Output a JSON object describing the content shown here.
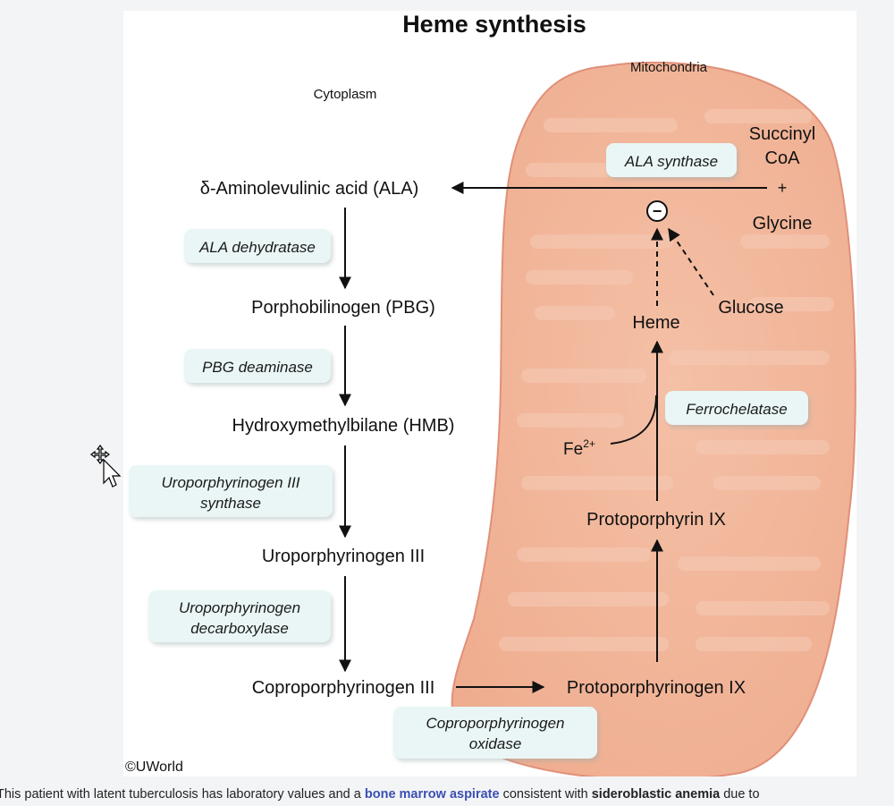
{
  "title": "Heme synthesis",
  "regions": {
    "cytoplasm": "Cytoplasm",
    "mitochondria": "Mitochondria"
  },
  "substrates": {
    "succinyl_line1": "Succinyl",
    "succinyl_line2": "CoA",
    "plus": "+",
    "glycine": "Glycine",
    "glucose": "Glucose",
    "iron_base": "Fe",
    "iron_charge": "2+",
    "inhibition_symbol": "−"
  },
  "compounds": {
    "ala": "δ-Aminolevulinic acid (ALA)",
    "pbg": "Porphobilinogen (PBG)",
    "hmb": "Hydroxymethylbilane (HMB)",
    "uro3": "Uroporphyrinogen III",
    "copro3": "Coproporphyrinogen III",
    "protogen9": "Protoporphyrinogen IX",
    "proto9": "Protoporphyrin IX",
    "heme": "Heme"
  },
  "enzymes": {
    "ala_synthase": "ALA synthase",
    "ala_dehydratase": "ALA dehydratase",
    "pbg_deaminase": "PBG deaminase",
    "uro3_synthase_line1": "Uroporphyrinogen III",
    "uro3_synthase_line2": "synthase",
    "uro_decarb_line1": "Uroporphyrinogen",
    "uro_decarb_line2": "decarboxylase",
    "copro_oxidase_line1": "Coproporphyrinogen",
    "copro_oxidase_line2": "oxidase",
    "ferrochelatase": "Ferrochelatase"
  },
  "credit": "©UWorld",
  "caption": {
    "part1": "This patient with latent tuberculosis has laboratory values and a ",
    "link": "bone marrow aspirate",
    "part2": " consistent with ",
    "bold": "sideroblastic anemia",
    "part3": " due to"
  },
  "colors": {
    "mito_fill": "#f3b89c",
    "mito_edge": "#e2937a",
    "mito_fold": "#f6c9b3",
    "enzyme_box": "#eaf6f6",
    "link": "#3b4fb3"
  }
}
